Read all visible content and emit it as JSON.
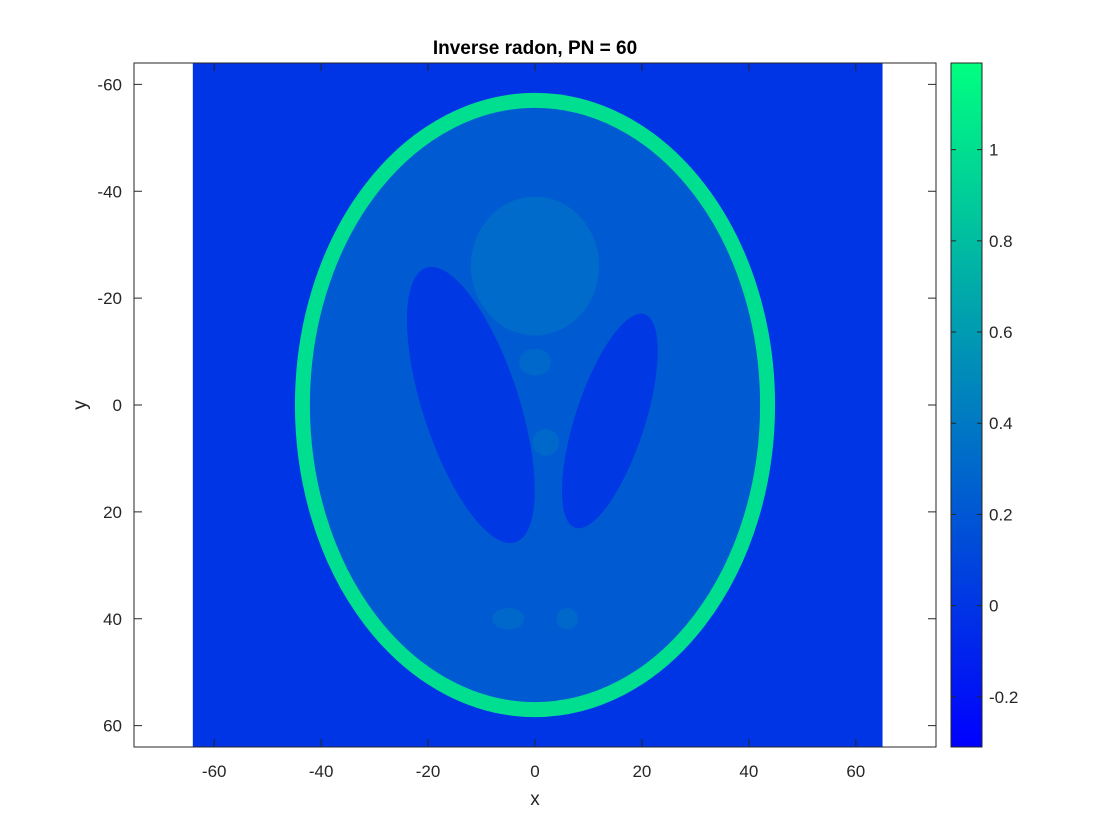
{
  "chart_data": {
    "type": "heatmap",
    "title": "Inverse radon, PN = 60",
    "xlabel": "x",
    "ylabel": "y",
    "xlim": [
      -75,
      75
    ],
    "ylim": [
      -64,
      64
    ],
    "y_direction": "reversed",
    "x_ticks": [
      -60,
      -40,
      -20,
      0,
      20,
      40,
      60
    ],
    "y_ticks": [
      -60,
      -40,
      -20,
      0,
      20,
      40,
      60
    ],
    "image_extent": {
      "x": [
        -64,
        65
      ],
      "y": [
        -64,
        64
      ]
    },
    "colormap": "winter",
    "colormap_stops": [
      "#0000ff",
      "#00ff80"
    ],
    "clim": [
      -0.31,
      1.19
    ],
    "colorbar_ticks": [
      -0.2,
      0,
      0.2,
      0.4,
      0.6,
      0.8,
      1
    ],
    "colorbar_labels": [
      "-0.2",
      "0",
      "0.2",
      "0.4",
      "0.6",
      "0.8",
      "1"
    ],
    "background_value": 0.0,
    "outer_ellipse": {
      "cx": 0,
      "cy": 0,
      "a": 43.5,
      "b": 57,
      "value": 1.0,
      "thickness": 2.8
    },
    "interior_value": 0.22,
    "regions": [
      {
        "name": "left dark ellipse",
        "cx": -12,
        "cy": 0,
        "a": 9,
        "b": 27,
        "angle": -18,
        "value": 0.02
      },
      {
        "name": "right dark ellipse",
        "cx": 14,
        "cy": 3,
        "a": 6.5,
        "b": 21,
        "angle": 18,
        "value": 0.02
      },
      {
        "name": "upper bright ellipse",
        "cx": 0,
        "cy": -26,
        "a": 12,
        "b": 13,
        "angle": 0,
        "value": 0.32
      },
      {
        "name": "small spot top",
        "cx": 0,
        "cy": -8,
        "a": 3,
        "b": 2.5,
        "angle": 0,
        "value": 0.3
      },
      {
        "name": "small spot center",
        "cx": 2,
        "cy": 7,
        "a": 2.5,
        "b": 2.5,
        "angle": 0,
        "value": 0.3
      },
      {
        "name": "small spot bottom left",
        "cx": -5,
        "cy": 40,
        "a": 3,
        "b": 2,
        "angle": 0,
        "value": 0.3
      },
      {
        "name": "small spot bottom right",
        "cx": 6,
        "cy": 40,
        "a": 2,
        "b": 2,
        "angle": 0,
        "value": 0.3
      }
    ]
  }
}
